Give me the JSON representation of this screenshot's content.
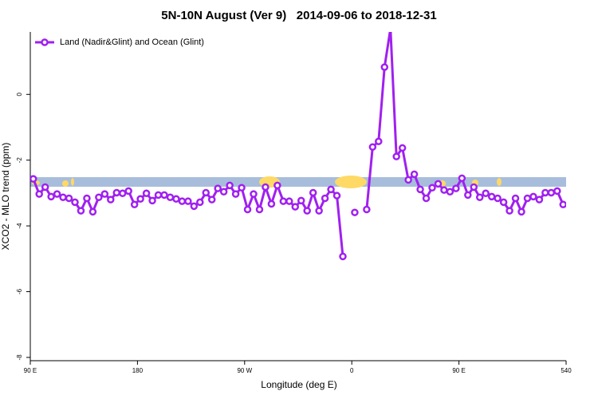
{
  "chart_data": {
    "type": "line",
    "title": "5N-10N August (Ver 9)   2014-09-06 to 2018-12-31",
    "x_label": "Longitude (deg E)",
    "y_label": "XCO2 - MLO trend (ppm)",
    "x": [
      92.5,
      97.5,
      102.5,
      107.5,
      112.5,
      117.5,
      122.5,
      127.5,
      132.5,
      137.5,
      142.5,
      147.5,
      152.5,
      157.5,
      162.5,
      167.5,
      172.5,
      177.5,
      182.5,
      187.5,
      192.5,
      197.5,
      202.5,
      207.5,
      212.5,
      217.5,
      222.5,
      227.5,
      232.5,
      237.5,
      242.5,
      247.5,
      252.5,
      257.5,
      262.5,
      267.5,
      272.5,
      277.5,
      282.5,
      287.5,
      292.5,
      297.5,
      302.5,
      307.5,
      312.5,
      317.5,
      322.5,
      327.5,
      332.5,
      337.5,
      342.5,
      347.5,
      352.5,
      357.5,
      362.5,
      367.5,
      372.5,
      377.5,
      382.5,
      387.5,
      392.5,
      397.5,
      402.5,
      407.5,
      412.5,
      417.5,
      422.5,
      427.5,
      432.5,
      437.5,
      442.5,
      447.5,
      452.5,
      457.5,
      462.5,
      467.5,
      472.5,
      477.5,
      482.5,
      487.5,
      492.5,
      497.5,
      502.5,
      507.5,
      512.5,
      517.5,
      522.5,
      527.5,
      532.5,
      537.5
    ],
    "series": [
      {
        "name": "Land (Nadir&Glint) and Ocean (Glint)",
        "color": "#a020f0",
        "values": [
          -2.57,
          -3.03,
          -2.82,
          -3.11,
          -3.03,
          -3.13,
          -3.16,
          -3.28,
          -3.54,
          -3.16,
          -3.57,
          -3.13,
          -3.03,
          -3.2,
          -2.99,
          -3.01,
          -2.94,
          -3.35,
          -3.18,
          -3.01,
          -3.23,
          -3.06,
          -3.06,
          -3.13,
          -3.18,
          -3.25,
          -3.25,
          -3.4,
          -3.28,
          -2.99,
          -3.2,
          -2.86,
          -2.96,
          -2.77,
          -3.03,
          -2.84,
          -3.5,
          -3.03,
          -3.5,
          -2.82,
          -3.33,
          -2.77,
          -3.25,
          -3.25,
          -3.42,
          -3.23,
          -3.54,
          -2.99,
          -3.54,
          -3.16,
          -2.89,
          -3.08,
          -4.93,
          null,
          -3.59,
          null,
          -3.5,
          -1.6,
          -1.43,
          0.83,
          2.0,
          -1.89,
          -1.63,
          -2.6,
          -2.43,
          -2.89,
          -3.16,
          -2.84,
          -2.72,
          -2.91,
          -2.96,
          -2.86,
          -2.55,
          -3.06,
          -2.82,
          -3.13,
          -3.01,
          -3.11,
          -3.16,
          -3.28,
          -3.54,
          -3.16,
          -3.57,
          -3.16,
          -3.11,
          -3.2,
          -2.99,
          -2.99,
          -2.94,
          -3.35
        ]
      }
    ],
    "xlim": [
      90,
      540
    ],
    "xticks": [
      {
        "value": 90,
        "label": "90 E"
      },
      180,
      {
        "value": 270,
        "label": "90 W"
      },
      {
        "value": 360,
        "label": "0"
      },
      {
        "value": 450,
        "label": "90 E"
      },
      540
    ],
    "ylim": [
      -8.1,
      1.9
    ],
    "yticks": [
      -8,
      -6,
      -4,
      -2,
      0
    ],
    "legend": "top-left"
  }
}
